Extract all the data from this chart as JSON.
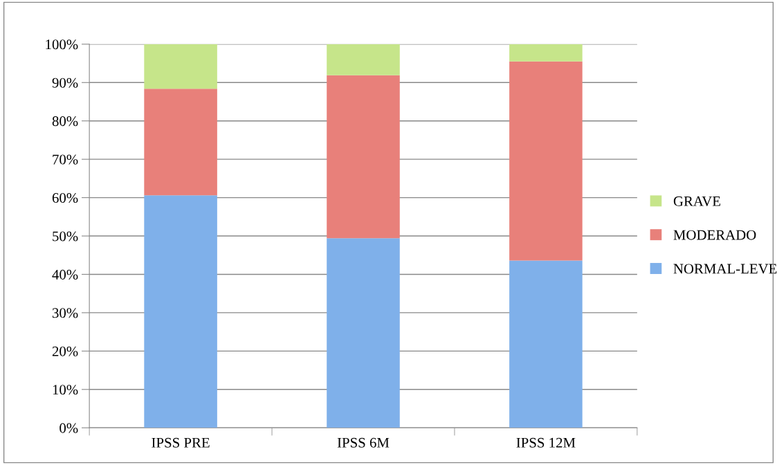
{
  "chart_data": {
    "type": "bar",
    "stacked": true,
    "categories": [
      "IPSS PRE",
      "IPSS 6M",
      "IPSS 12M"
    ],
    "series": [
      {
        "name": "NORMAL-LEVE",
        "color": "#7fb0ea",
        "values": [
          60.6,
          49.4,
          43.6
        ]
      },
      {
        "name": "MODERADO",
        "color": "#e8807a",
        "values": [
          27.8,
          42.5,
          51.9
        ]
      },
      {
        "name": "GRAVE",
        "color": "#c6e58a",
        "values": [
          11.6,
          8.1,
          4.5
        ]
      }
    ],
    "ylim": [
      0,
      100
    ],
    "yticks": [
      {
        "value": 0,
        "label": "0%"
      },
      {
        "value": 10,
        "label": "10%"
      },
      {
        "value": 20,
        "label": "20%"
      },
      {
        "value": 30,
        "label": "30%"
      },
      {
        "value": 40,
        "label": "40%"
      },
      {
        "value": 50,
        "label": "50%"
      },
      {
        "value": 60,
        "label": "60%"
      },
      {
        "value": 70,
        "label": "70%"
      },
      {
        "value": 80,
        "label": "80%"
      },
      {
        "value": 90,
        "label": "90%"
      },
      {
        "value": 100,
        "label": "100%"
      }
    ],
    "grid": "y",
    "legend": "right"
  }
}
